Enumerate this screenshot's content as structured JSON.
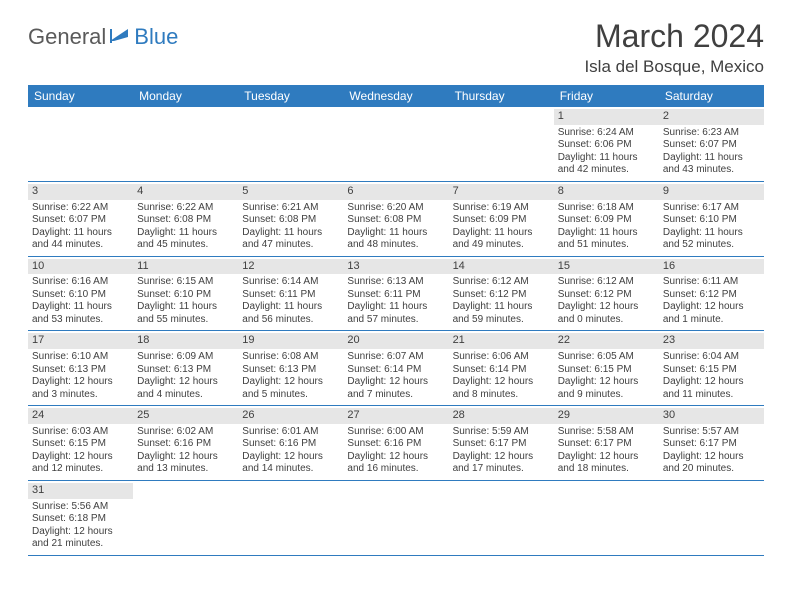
{
  "brand": {
    "part1": "General",
    "part2": "Blue"
  },
  "title": "March 2024",
  "location": "Isla del Bosque, Mexico",
  "colors": {
    "header_bg": "#2f7bbf",
    "header_text": "#ffffff",
    "daynum_bg": "#e6e6e6",
    "body_text": "#404040",
    "rule": "#2f7bbf"
  },
  "day_names": [
    "Sunday",
    "Monday",
    "Tuesday",
    "Wednesday",
    "Thursday",
    "Friday",
    "Saturday"
  ],
  "weeks": [
    [
      {
        "empty": true
      },
      {
        "empty": true
      },
      {
        "empty": true
      },
      {
        "empty": true
      },
      {
        "empty": true
      },
      {
        "n": "1",
        "sunrise": "Sunrise: 6:24 AM",
        "sunset": "Sunset: 6:06 PM",
        "daylight": "Daylight: 11 hours and 42 minutes."
      },
      {
        "n": "2",
        "sunrise": "Sunrise: 6:23 AM",
        "sunset": "Sunset: 6:07 PM",
        "daylight": "Daylight: 11 hours and 43 minutes."
      }
    ],
    [
      {
        "n": "3",
        "sunrise": "Sunrise: 6:22 AM",
        "sunset": "Sunset: 6:07 PM",
        "daylight": "Daylight: 11 hours and 44 minutes."
      },
      {
        "n": "4",
        "sunrise": "Sunrise: 6:22 AM",
        "sunset": "Sunset: 6:08 PM",
        "daylight": "Daylight: 11 hours and 45 minutes."
      },
      {
        "n": "5",
        "sunrise": "Sunrise: 6:21 AM",
        "sunset": "Sunset: 6:08 PM",
        "daylight": "Daylight: 11 hours and 47 minutes."
      },
      {
        "n": "6",
        "sunrise": "Sunrise: 6:20 AM",
        "sunset": "Sunset: 6:08 PM",
        "daylight": "Daylight: 11 hours and 48 minutes."
      },
      {
        "n": "7",
        "sunrise": "Sunrise: 6:19 AM",
        "sunset": "Sunset: 6:09 PM",
        "daylight": "Daylight: 11 hours and 49 minutes."
      },
      {
        "n": "8",
        "sunrise": "Sunrise: 6:18 AM",
        "sunset": "Sunset: 6:09 PM",
        "daylight": "Daylight: 11 hours and 51 minutes."
      },
      {
        "n": "9",
        "sunrise": "Sunrise: 6:17 AM",
        "sunset": "Sunset: 6:10 PM",
        "daylight": "Daylight: 11 hours and 52 minutes."
      }
    ],
    [
      {
        "n": "10",
        "sunrise": "Sunrise: 6:16 AM",
        "sunset": "Sunset: 6:10 PM",
        "daylight": "Daylight: 11 hours and 53 minutes."
      },
      {
        "n": "11",
        "sunrise": "Sunrise: 6:15 AM",
        "sunset": "Sunset: 6:10 PM",
        "daylight": "Daylight: 11 hours and 55 minutes."
      },
      {
        "n": "12",
        "sunrise": "Sunrise: 6:14 AM",
        "sunset": "Sunset: 6:11 PM",
        "daylight": "Daylight: 11 hours and 56 minutes."
      },
      {
        "n": "13",
        "sunrise": "Sunrise: 6:13 AM",
        "sunset": "Sunset: 6:11 PM",
        "daylight": "Daylight: 11 hours and 57 minutes."
      },
      {
        "n": "14",
        "sunrise": "Sunrise: 6:12 AM",
        "sunset": "Sunset: 6:12 PM",
        "daylight": "Daylight: 11 hours and 59 minutes."
      },
      {
        "n": "15",
        "sunrise": "Sunrise: 6:12 AM",
        "sunset": "Sunset: 6:12 PM",
        "daylight": "Daylight: 12 hours and 0 minutes."
      },
      {
        "n": "16",
        "sunrise": "Sunrise: 6:11 AM",
        "sunset": "Sunset: 6:12 PM",
        "daylight": "Daylight: 12 hours and 1 minute."
      }
    ],
    [
      {
        "n": "17",
        "sunrise": "Sunrise: 6:10 AM",
        "sunset": "Sunset: 6:13 PM",
        "daylight": "Daylight: 12 hours and 3 minutes."
      },
      {
        "n": "18",
        "sunrise": "Sunrise: 6:09 AM",
        "sunset": "Sunset: 6:13 PM",
        "daylight": "Daylight: 12 hours and 4 minutes."
      },
      {
        "n": "19",
        "sunrise": "Sunrise: 6:08 AM",
        "sunset": "Sunset: 6:13 PM",
        "daylight": "Daylight: 12 hours and 5 minutes."
      },
      {
        "n": "20",
        "sunrise": "Sunrise: 6:07 AM",
        "sunset": "Sunset: 6:14 PM",
        "daylight": "Daylight: 12 hours and 7 minutes."
      },
      {
        "n": "21",
        "sunrise": "Sunrise: 6:06 AM",
        "sunset": "Sunset: 6:14 PM",
        "daylight": "Daylight: 12 hours and 8 minutes."
      },
      {
        "n": "22",
        "sunrise": "Sunrise: 6:05 AM",
        "sunset": "Sunset: 6:15 PM",
        "daylight": "Daylight: 12 hours and 9 minutes."
      },
      {
        "n": "23",
        "sunrise": "Sunrise: 6:04 AM",
        "sunset": "Sunset: 6:15 PM",
        "daylight": "Daylight: 12 hours and 11 minutes."
      }
    ],
    [
      {
        "n": "24",
        "sunrise": "Sunrise: 6:03 AM",
        "sunset": "Sunset: 6:15 PM",
        "daylight": "Daylight: 12 hours and 12 minutes."
      },
      {
        "n": "25",
        "sunrise": "Sunrise: 6:02 AM",
        "sunset": "Sunset: 6:16 PM",
        "daylight": "Daylight: 12 hours and 13 minutes."
      },
      {
        "n": "26",
        "sunrise": "Sunrise: 6:01 AM",
        "sunset": "Sunset: 6:16 PM",
        "daylight": "Daylight: 12 hours and 14 minutes."
      },
      {
        "n": "27",
        "sunrise": "Sunrise: 6:00 AM",
        "sunset": "Sunset: 6:16 PM",
        "daylight": "Daylight: 12 hours and 16 minutes."
      },
      {
        "n": "28",
        "sunrise": "Sunrise: 5:59 AM",
        "sunset": "Sunset: 6:17 PM",
        "daylight": "Daylight: 12 hours and 17 minutes."
      },
      {
        "n": "29",
        "sunrise": "Sunrise: 5:58 AM",
        "sunset": "Sunset: 6:17 PM",
        "daylight": "Daylight: 12 hours and 18 minutes."
      },
      {
        "n": "30",
        "sunrise": "Sunrise: 5:57 AM",
        "sunset": "Sunset: 6:17 PM",
        "daylight": "Daylight: 12 hours and 20 minutes."
      }
    ],
    [
      {
        "n": "31",
        "sunrise": "Sunrise: 5:56 AM",
        "sunset": "Sunset: 6:18 PM",
        "daylight": "Daylight: 12 hours and 21 minutes."
      },
      {
        "empty": true
      },
      {
        "empty": true
      },
      {
        "empty": true
      },
      {
        "empty": true
      },
      {
        "empty": true
      },
      {
        "empty": true
      }
    ]
  ]
}
